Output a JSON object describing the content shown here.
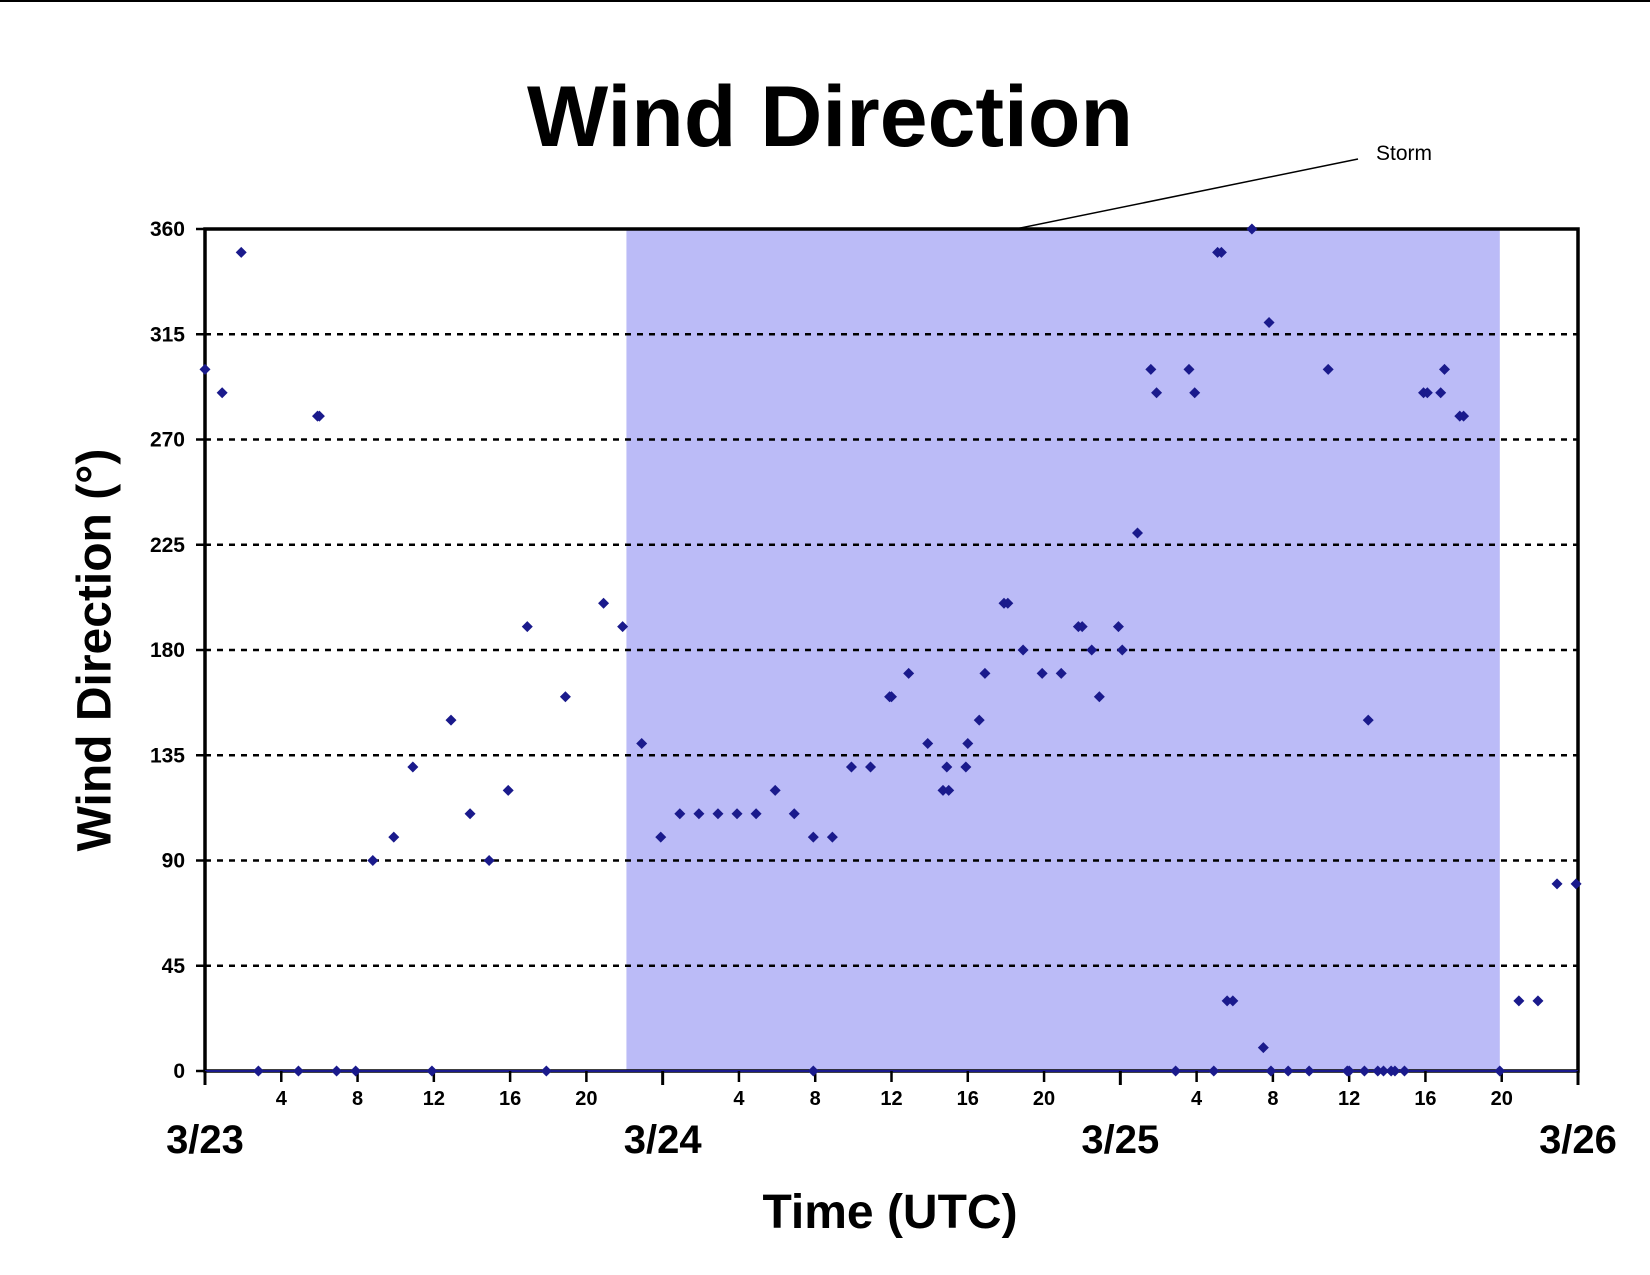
{
  "chart_data": {
    "type": "scatter",
    "title": "Wind Direction",
    "xlabel": "Time (UTC)",
    "ylabel": "Wind Direction (°)",
    "ylim": [
      0,
      360
    ],
    "yticks": [
      0,
      45,
      90,
      135,
      180,
      225,
      270,
      315,
      360
    ],
    "xlim": [
      0,
      72
    ],
    "x_unit": "hours after 3/23 00 UTC",
    "hour_ticks": [
      {
        "x": 4,
        "label": "4"
      },
      {
        "x": 8,
        "label": "8"
      },
      {
        "x": 12,
        "label": "12"
      },
      {
        "x": 16,
        "label": "16"
      },
      {
        "x": 20,
        "label": "20"
      },
      {
        "x": 28,
        "label": "4"
      },
      {
        "x": 32,
        "label": "8"
      },
      {
        "x": 36,
        "label": "12"
      },
      {
        "x": 40,
        "label": "16"
      },
      {
        "x": 44,
        "label": "20"
      },
      {
        "x": 52,
        "label": "4"
      },
      {
        "x": 56,
        "label": "8"
      },
      {
        "x": 60,
        "label": "12"
      },
      {
        "x": 64,
        "label": "16"
      },
      {
        "x": 68,
        "label": "20"
      }
    ],
    "day_ticks": [
      {
        "x": 0,
        "label": "3/23"
      },
      {
        "x": 24,
        "label": "3/24"
      },
      {
        "x": 48,
        "label": "3/25"
      },
      {
        "x": 72,
        "label": "3/26"
      }
    ],
    "grid": "horizontal dashed",
    "shaded_region": {
      "x_start": 22.1,
      "x_end": 67.9,
      "color": "#bbbbf7"
    },
    "annotation": {
      "text": "Storm",
      "target_x": 42.5,
      "target_y": 360
    },
    "marker_color": "#1a1a8c",
    "series": [
      {
        "points": [
          [
            0.0,
            300
          ],
          [
            0.9,
            290
          ],
          [
            1.9,
            350
          ],
          [
            2.8,
            0
          ],
          [
            4.9,
            0
          ],
          [
            5.9,
            280
          ],
          [
            6.0,
            280
          ],
          [
            6.9,
            0
          ],
          [
            7.9,
            0
          ],
          [
            8.8,
            90
          ],
          [
            9.9,
            100
          ],
          [
            10.9,
            130
          ],
          [
            11.9,
            0
          ],
          [
            12.9,
            150
          ],
          [
            13.9,
            110
          ],
          [
            14.9,
            90
          ],
          [
            15.9,
            120
          ],
          [
            16.9,
            190
          ],
          [
            17.9,
            0
          ],
          [
            18.9,
            160
          ],
          [
            20.9,
            200
          ],
          [
            21.9,
            190
          ],
          [
            22.9,
            140
          ],
          [
            23.9,
            100
          ],
          [
            24.9,
            110
          ],
          [
            25.9,
            110
          ],
          [
            26.9,
            110
          ],
          [
            27.9,
            110
          ],
          [
            28.9,
            110
          ],
          [
            29.9,
            120
          ],
          [
            30.9,
            110
          ],
          [
            31.9,
            100
          ],
          [
            31.9,
            0
          ],
          [
            32.9,
            100
          ],
          [
            33.9,
            130
          ],
          [
            34.9,
            130
          ],
          [
            35.9,
            160
          ],
          [
            36.0,
            160
          ],
          [
            36.9,
            170
          ],
          [
            37.9,
            140
          ],
          [
            38.7,
            120
          ],
          [
            39.0,
            120
          ],
          [
            38.9,
            130
          ],
          [
            39.9,
            130
          ],
          [
            40.0,
            140
          ],
          [
            40.6,
            150
          ],
          [
            40.9,
            170
          ],
          [
            41.9,
            200
          ],
          [
            42.1,
            200
          ],
          [
            42.9,
            180
          ],
          [
            43.9,
            170
          ],
          [
            44.9,
            170
          ],
          [
            45.8,
            190
          ],
          [
            46.0,
            190
          ],
          [
            46.5,
            180
          ],
          [
            46.9,
            160
          ],
          [
            47.9,
            190
          ],
          [
            48.1,
            180
          ],
          [
            48.9,
            230
          ],
          [
            49.6,
            300
          ],
          [
            49.9,
            290
          ],
          [
            50.9,
            0
          ],
          [
            51.6,
            300
          ],
          [
            51.9,
            290
          ],
          [
            52.9,
            0
          ],
          [
            53.1,
            350
          ],
          [
            53.3,
            350
          ],
          [
            53.6,
            30
          ],
          [
            53.9,
            30
          ],
          [
            54.9,
            360
          ],
          [
            55.5,
            10
          ],
          [
            55.8,
            320
          ],
          [
            55.9,
            0
          ],
          [
            56.8,
            0
          ],
          [
            57.9,
            0
          ],
          [
            58.9,
            300
          ],
          [
            59.9,
            0
          ],
          [
            60.0,
            0
          ],
          [
            60.8,
            0
          ],
          [
            61.0,
            150
          ],
          [
            61.5,
            0
          ],
          [
            61.8,
            0
          ],
          [
            62.2,
            0
          ],
          [
            62.4,
            0
          ],
          [
            62.9,
            0
          ],
          [
            63.9,
            290
          ],
          [
            64.1,
            290
          ],
          [
            64.8,
            290
          ],
          [
            65.0,
            300
          ],
          [
            65.8,
            280
          ],
          [
            66.0,
            280
          ],
          [
            67.9,
            0
          ],
          [
            68.9,
            30
          ],
          [
            69.9,
            30
          ],
          [
            70.9,
            80
          ],
          [
            71.9,
            80
          ]
        ]
      }
    ]
  }
}
